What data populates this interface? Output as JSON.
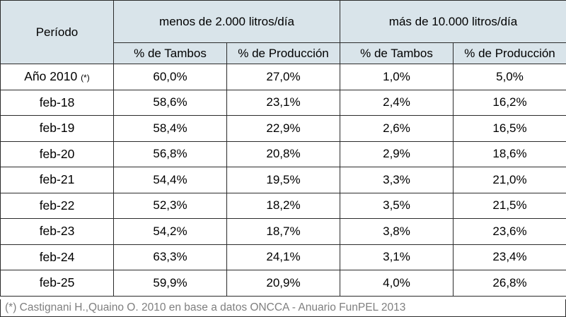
{
  "header": {
    "period_label": "Período",
    "group_small": "menos de 2.000 litros/día",
    "group_large": "más de 10.000 litros/día",
    "sub_headers": [
      "% de Tambos",
      "% de Producción",
      "% de Tambos",
      "% de Producción"
    ]
  },
  "rows": [
    {
      "period": "Año 2010",
      "marker": "(*)",
      "values": [
        "60,0%",
        "27,0%",
        "1,0%",
        "5,0%"
      ]
    },
    {
      "period": "feb-18",
      "marker": "",
      "values": [
        "58,6%",
        "23,1%",
        "2,4%",
        "16,2%"
      ]
    },
    {
      "period": "feb-19",
      "marker": "",
      "values": [
        "58,4%",
        "22,9%",
        "2,6%",
        "16,5%"
      ]
    },
    {
      "period": "feb-20",
      "marker": "",
      "values": [
        "56,8%",
        "20,8%",
        "2,9%",
        "18,6%"
      ]
    },
    {
      "period": "feb-21",
      "marker": "",
      "values": [
        "54,4%",
        "19,5%",
        "3,3%",
        "21,0%"
      ]
    },
    {
      "period": "feb-22",
      "marker": "",
      "values": [
        "52,3%",
        "18,2%",
        "3,5%",
        "21,5%"
      ]
    },
    {
      "period": "feb-23",
      "marker": "",
      "values": [
        "54,2%",
        "18,7%",
        "3,8%",
        "23,6%"
      ]
    },
    {
      "period": "feb-24",
      "marker": "",
      "values": [
        "63,3%",
        "24,1%",
        "3,1%",
        "23,4%"
      ]
    },
    {
      "period": "feb-25",
      "marker": "",
      "values": [
        "59,9%",
        "20,9%",
        "4,0%",
        "26,8%"
      ]
    }
  ],
  "footnote": "(*) Castignani H.,Quaino O. 2010 en base a datos ONCCA - Anuario FunPEL 2013",
  "colors": {
    "header_bg": "#d9e4ea",
    "footnote_text": "#7f7f7f",
    "border": "#2b2b2b"
  }
}
